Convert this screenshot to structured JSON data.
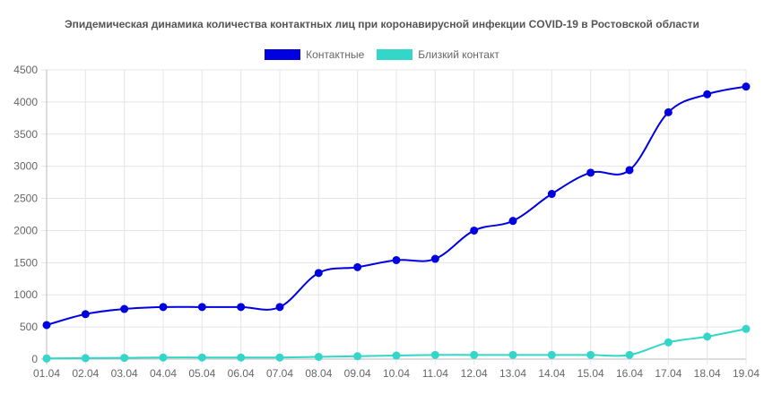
{
  "chart_data": {
    "type": "line",
    "title": "Эпидемическая динамика количества контактных лиц при коронавирусной инфекции COVID-19 в Ростовской области",
    "categories": [
      "01.04",
      "02.04",
      "03.04",
      "04.04",
      "05.04",
      "06.04",
      "07.04",
      "08.04",
      "09.04",
      "10.04",
      "11.04",
      "12.04",
      "13.04",
      "14.04",
      "15.04",
      "16.04",
      "17.04",
      "18.04",
      "19.04"
    ],
    "series": [
      {
        "name": "Контактные",
        "color": "#0000e0",
        "values": [
          530,
          700,
          780,
          810,
          810,
          810,
          810,
          1340,
          1430,
          1540,
          1560,
          2000,
          2150,
          2570,
          2900,
          2940,
          3840,
          4120,
          4240
        ]
      },
      {
        "name": "Близкий контакт",
        "color": "#33d6c8",
        "values": [
          10,
          15,
          20,
          25,
          25,
          25,
          25,
          35,
          45,
          55,
          65,
          65,
          65,
          65,
          65,
          65,
          260,
          350,
          470
        ]
      }
    ],
    "ylim": [
      0,
      4500
    ],
    "yticks": [
      0,
      500,
      1000,
      1500,
      2000,
      2500,
      3000,
      3500,
      4000,
      4500
    ],
    "grid": true,
    "legend_position": "top"
  }
}
